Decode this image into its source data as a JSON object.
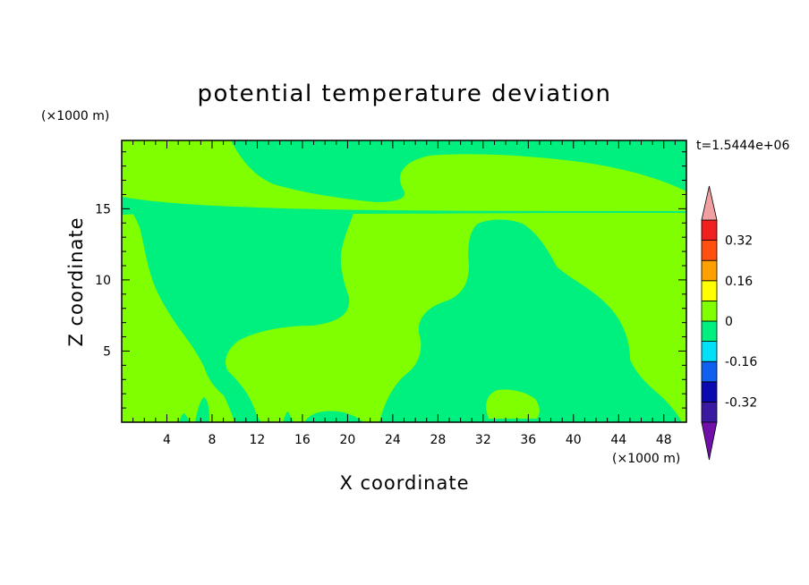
{
  "chart_data": {
    "type": "heatmap",
    "title": "potential temperature deviation",
    "xlabel": "X coordinate",
    "ylabel": "Z coordinate",
    "x_unit": "(×1000 m)",
    "y_unit": "(×1000 m)",
    "time_label": "t=1.5444e+06",
    "xlim": [
      0,
      50
    ],
    "ylim": [
      0,
      19.8
    ],
    "x_ticks": [
      4,
      8,
      12,
      16,
      20,
      24,
      28,
      32,
      36,
      40,
      44,
      48
    ],
    "y_ticks": [
      5,
      10,
      15
    ],
    "colorbar": {
      "levels": [
        -0.4,
        -0.32,
        -0.24,
        -0.16,
        -0.08,
        0,
        0.08,
        0.16,
        0.24,
        0.32,
        0.4
      ],
      "labels": [
        "0.32",
        "0.16",
        "0",
        "-0.16",
        "-0.32"
      ],
      "label_values": [
        0.32,
        0.16,
        0,
        -0.16,
        -0.32
      ],
      "colors_low_to_high": [
        "#3a1aa0",
        "#0a0ab0",
        "#1060f0",
        "#00e0f8",
        "#00f080",
        "#80ff00",
        "#ffff00",
        "#ffa000",
        "#ff5010",
        "#f02020"
      ],
      "under_color": "#7010a8",
      "over_color": "#f0a0a0"
    },
    "field_colors": {
      "background_bin": "#80ff00",
      "negative_bin": "#00f080"
    }
  }
}
